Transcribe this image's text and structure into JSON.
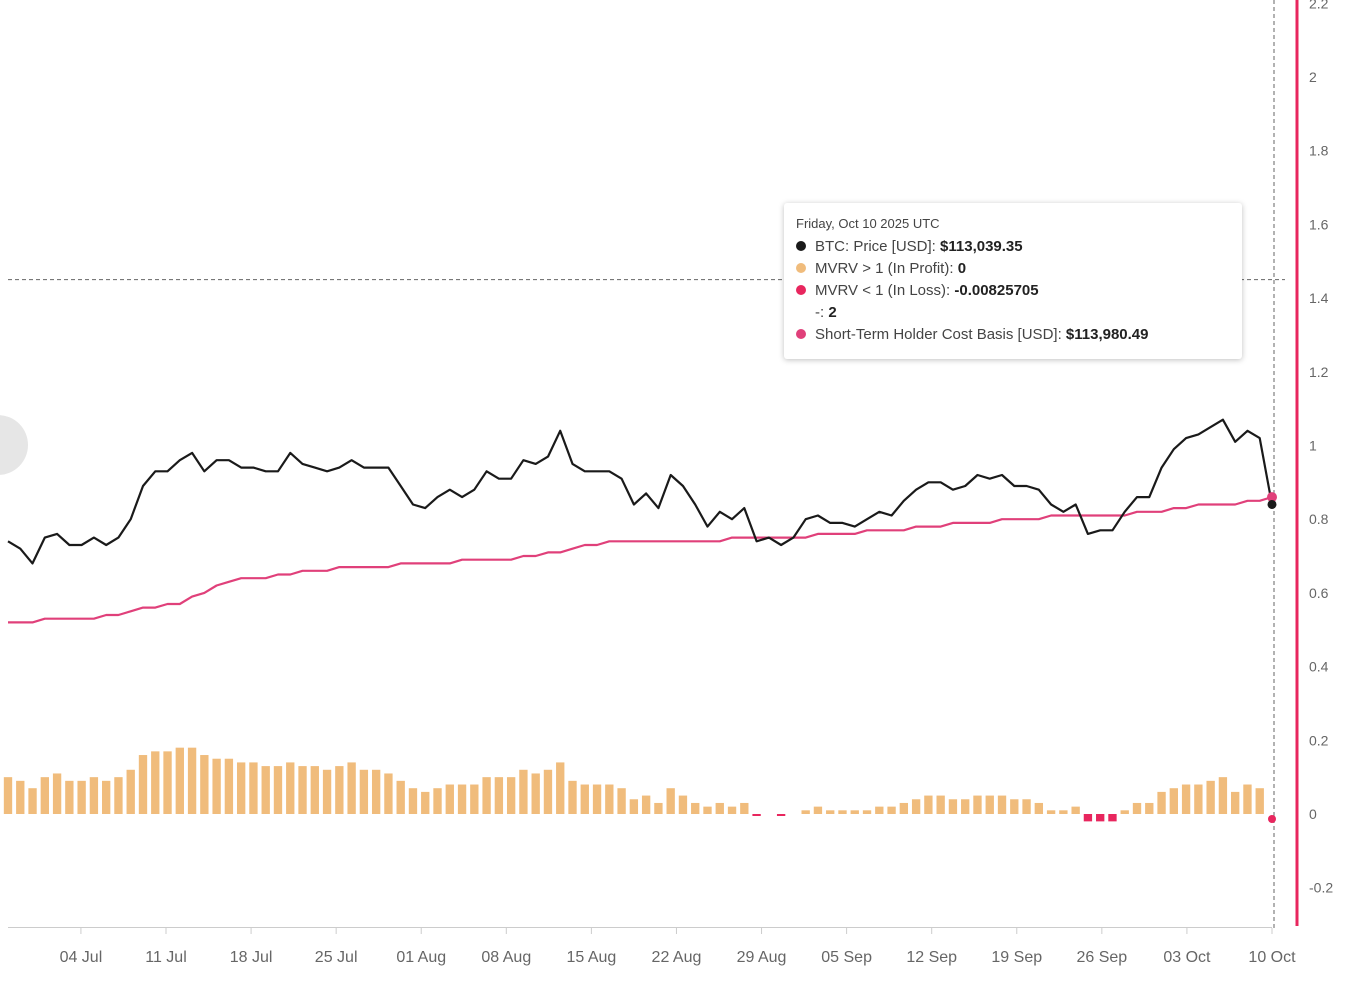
{
  "colors": {
    "price": "#1a1a1a",
    "sth_cost_basis": "#e0407a",
    "mvrv_profit": "#f0bc7c",
    "mvrv_loss": "#e8265e",
    "axis_accent": "#e8265e",
    "crosshair": "#666666"
  },
  "chart_data": {
    "type": "line",
    "x_axis": {
      "tick_labels": [
        "04 Jul",
        "11 Jul",
        "18 Jul",
        "25 Jul",
        "01 Aug",
        "08 Aug",
        "15 Aug",
        "22 Aug",
        "29 Aug",
        "05 Sep",
        "12 Sep",
        "19 Sep",
        "26 Sep",
        "03 Oct",
        "10 Oct"
      ],
      "start_date": "2025-06-28",
      "end_date": "2025-10-10"
    },
    "y_axis_right": {
      "ticks": [
        2.2,
        2,
        1.8,
        1.6,
        1.4,
        1.2,
        1,
        0.8,
        0.6,
        0.4,
        0.2,
        0,
        -0.2
      ],
      "tick_labels": [
        "2.2",
        "2",
        "1.8",
        "1.6",
        "1.4",
        "1.2",
        "1",
        "0.8",
        "0.6",
        "0.4",
        "0.2",
        "0",
        "-0.2"
      ],
      "range": [
        -0.23,
        2.21
      ]
    },
    "crosshair_y_value": 1.45,
    "series": [
      {
        "name": "BTC: Price [USD]",
        "type": "line",
        "values": [
          0.74,
          0.72,
          0.68,
          0.75,
          0.76,
          0.73,
          0.73,
          0.75,
          0.73,
          0.75,
          0.8,
          0.89,
          0.93,
          0.93,
          0.96,
          0.98,
          0.93,
          0.96,
          0.96,
          0.94,
          0.94,
          0.93,
          0.93,
          0.98,
          0.95,
          0.94,
          0.93,
          0.94,
          0.96,
          0.94,
          0.94,
          0.94,
          0.89,
          0.84,
          0.83,
          0.86,
          0.88,
          0.86,
          0.88,
          0.93,
          0.91,
          0.91,
          0.96,
          0.95,
          0.97,
          1.04,
          0.95,
          0.93,
          0.93,
          0.93,
          0.91,
          0.84,
          0.87,
          0.83,
          0.92,
          0.89,
          0.84,
          0.78,
          0.82,
          0.8,
          0.83,
          0.74,
          0.75,
          0.73,
          0.75,
          0.8,
          0.81,
          0.79,
          0.79,
          0.78,
          0.8,
          0.82,
          0.81,
          0.85,
          0.88,
          0.9,
          0.9,
          0.88,
          0.89,
          0.92,
          0.91,
          0.92,
          0.89,
          0.89,
          0.88,
          0.84,
          0.82,
          0.84,
          0.76,
          0.77,
          0.77,
          0.82,
          0.86,
          0.86,
          0.94,
          0.99,
          1.02,
          1.03,
          1.05,
          1.07,
          1.01,
          1.04,
          1.02,
          0.84
        ]
      },
      {
        "name": "Short-Term Holder Cost Basis [USD]",
        "type": "line",
        "values": [
          0.52,
          0.52,
          0.52,
          0.53,
          0.53,
          0.53,
          0.53,
          0.53,
          0.54,
          0.54,
          0.55,
          0.56,
          0.56,
          0.57,
          0.57,
          0.59,
          0.6,
          0.62,
          0.63,
          0.64,
          0.64,
          0.64,
          0.65,
          0.65,
          0.66,
          0.66,
          0.66,
          0.67,
          0.67,
          0.67,
          0.67,
          0.67,
          0.68,
          0.68,
          0.68,
          0.68,
          0.68,
          0.69,
          0.69,
          0.69,
          0.69,
          0.69,
          0.7,
          0.7,
          0.71,
          0.71,
          0.72,
          0.73,
          0.73,
          0.74,
          0.74,
          0.74,
          0.74,
          0.74,
          0.74,
          0.74,
          0.74,
          0.74,
          0.74,
          0.75,
          0.75,
          0.75,
          0.75,
          0.75,
          0.75,
          0.75,
          0.76,
          0.76,
          0.76,
          0.76,
          0.77,
          0.77,
          0.77,
          0.77,
          0.78,
          0.78,
          0.78,
          0.79,
          0.79,
          0.79,
          0.79,
          0.8,
          0.8,
          0.8,
          0.8,
          0.81,
          0.81,
          0.81,
          0.81,
          0.81,
          0.81,
          0.81,
          0.82,
          0.82,
          0.82,
          0.83,
          0.83,
          0.84,
          0.84,
          0.84,
          0.84,
          0.85,
          0.85,
          0.86
        ]
      },
      {
        "name": "MVRV > 1 (In Profit)",
        "type": "bar",
        "values": [
          0.1,
          0.09,
          0.07,
          0.1,
          0.11,
          0.09,
          0.09,
          0.1,
          0.09,
          0.1,
          0.12,
          0.16,
          0.17,
          0.17,
          0.18,
          0.18,
          0.16,
          0.15,
          0.15,
          0.14,
          0.14,
          0.13,
          0.13,
          0.14,
          0.13,
          0.13,
          0.12,
          0.13,
          0.14,
          0.12,
          0.12,
          0.11,
          0.09,
          0.07,
          0.06,
          0.07,
          0.08,
          0.08,
          0.08,
          0.1,
          0.1,
          0.1,
          0.12,
          0.11,
          0.12,
          0.14,
          0.09,
          0.08,
          0.08,
          0.08,
          0.07,
          0.04,
          0.05,
          0.03,
          0.07,
          0.05,
          0.03,
          0.02,
          0.03,
          0.02,
          0.03,
          0,
          0,
          0,
          0,
          0.01,
          0.02,
          0.01,
          0.01,
          0.01,
          0.01,
          0.02,
          0.02,
          0.03,
          0.04,
          0.05,
          0.05,
          0.04,
          0.04,
          0.05,
          0.05,
          0.05,
          0.04,
          0.04,
          0.03,
          0.01,
          0.01,
          0.02,
          0,
          0,
          0,
          0.01,
          0.03,
          0.03,
          0.06,
          0.07,
          0.08,
          0.08,
          0.09,
          0.1,
          0.06,
          0.08,
          0.07,
          0
        ]
      },
      {
        "name": "MVRV < 1 (In Loss)",
        "type": "bar",
        "values": [
          0,
          0,
          0,
          0,
          0,
          0,
          0,
          0,
          0,
          0,
          0,
          0,
          0,
          0,
          0,
          0,
          0,
          0,
          0,
          0,
          0,
          0,
          0,
          0,
          0,
          0,
          0,
          0,
          0,
          0,
          0,
          0,
          0,
          0,
          0,
          0,
          0,
          0,
          0,
          0,
          0,
          0,
          0,
          0,
          0,
          0,
          0,
          0,
          0,
          0,
          0,
          0,
          0,
          0,
          0,
          0,
          0,
          0,
          0,
          0,
          0,
          -0.003,
          0,
          -0.004,
          0,
          0,
          0,
          0,
          0,
          0,
          0,
          0,
          0,
          0,
          0,
          0,
          0,
          0,
          0,
          0,
          0,
          0,
          0,
          0,
          0,
          0,
          0,
          0,
          -0.02,
          -0.02,
          -0.02,
          0,
          0,
          0,
          0,
          0,
          0,
          0,
          0,
          0,
          0,
          0,
          0,
          -0.008
        ]
      }
    ]
  },
  "tooltip": {
    "date": "Friday, Oct 10 2025 UTC",
    "rows": [
      {
        "label": "BTC: Price [USD]: ",
        "value": "$113,039.35",
        "color": "#1a1a1a"
      },
      {
        "label": "MVRV > 1 (In Profit): ",
        "value": "0",
        "color": "#f0bc7c"
      },
      {
        "label": "MVRV < 1 (In Loss): ",
        "value": "-0.00825705",
        "color": "#e8265e"
      },
      {
        "label": "-: ",
        "value": "2",
        "color": ""
      },
      {
        "label": "Short-Term Holder Cost Basis [USD]: ",
        "value": "$113,980.49",
        "color": "#e0407a"
      }
    ]
  }
}
